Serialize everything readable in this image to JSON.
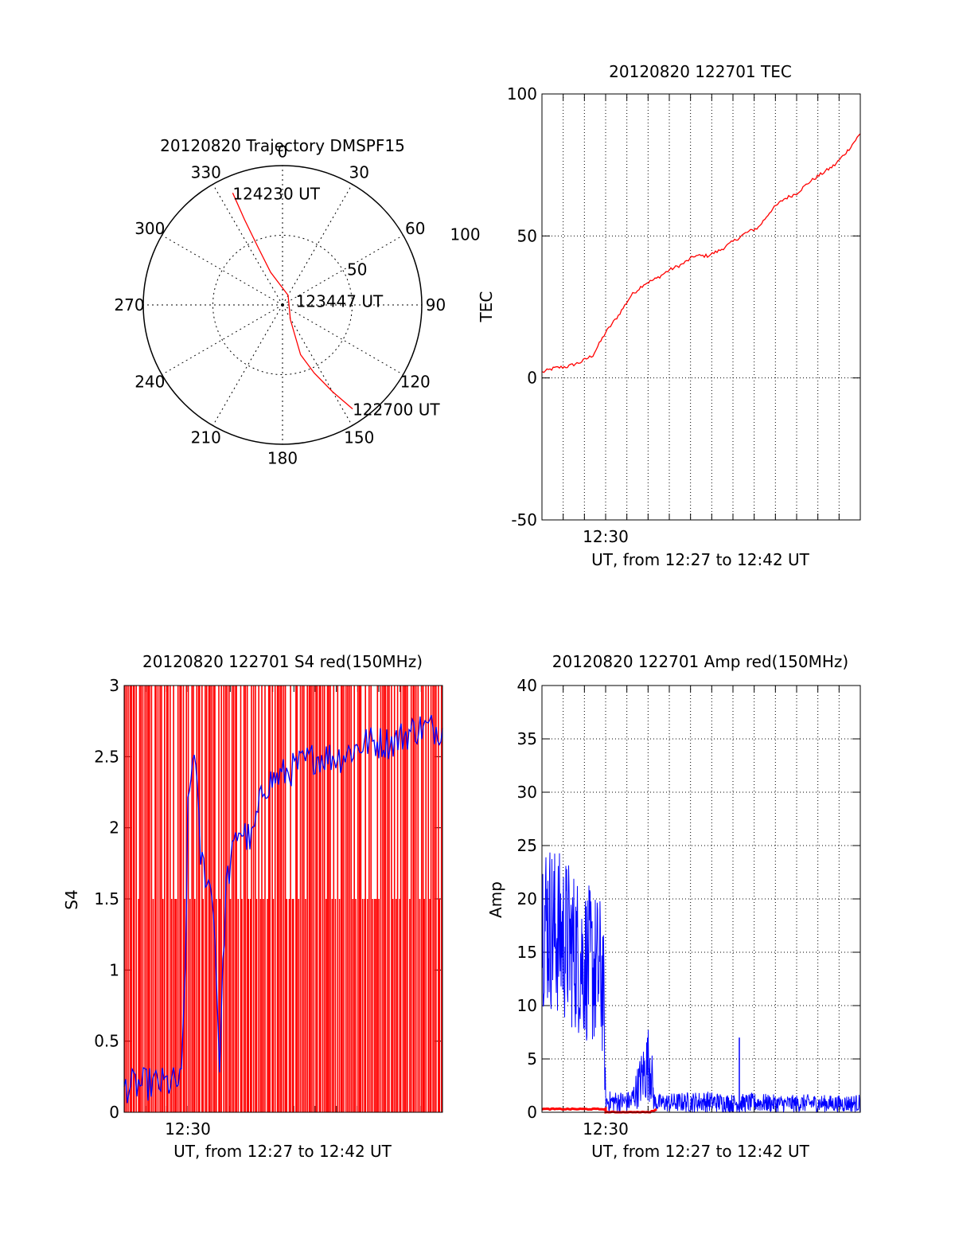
{
  "colors": {
    "red": "#ff0000",
    "blue": "#0000ff",
    "axis": "#000000",
    "grid": "#000000",
    "background": "#ffffff"
  },
  "chart_data": [
    {
      "id": "trajectory",
      "type": "polar",
      "title": "20120820 Trajectory DMSPF15",
      "theta_ticks": [
        "0",
        "30",
        "60",
        "90",
        "120",
        "150",
        "180",
        "210",
        "240",
        "270",
        "300",
        "330"
      ],
      "theta_tick_values": [
        0,
        30,
        60,
        90,
        120,
        150,
        180,
        210,
        240,
        270,
        300,
        330
      ],
      "radial_ticks": [
        "50",
        "100"
      ],
      "radial_tick_values": [
        50,
        100
      ],
      "rlim": [
        0,
        100
      ],
      "grid": true,
      "series": [
        {
          "color": "red",
          "points": [
            {
              "az": 146,
              "r": 90
            },
            {
              "az": 150,
              "r": 72
            },
            {
              "az": 155,
              "r": 54
            },
            {
              "az": 160,
              "r": 38
            },
            {
              "az": 152,
              "r": 12
            },
            {
              "az": 30,
              "r": 8
            },
            {
              "az": 340,
              "r": 25
            },
            {
              "az": 337,
              "r": 45
            },
            {
              "az": 336,
              "r": 67
            },
            {
              "az": 336,
              "r": 88
            }
          ]
        }
      ],
      "annotations": [
        {
          "text": "124230 UT",
          "az": 336,
          "r": 88
        },
        {
          "text": "123447 UT",
          "az": 72,
          "r": 10
        },
        {
          "text": "122700 UT",
          "az": 146,
          "r": 90
        }
      ]
    },
    {
      "id": "tec",
      "type": "line",
      "title": "20120820 122701 TEC",
      "xlabel": "UT, from 12:27 to 12:42 UT",
      "ylabel": "TEC",
      "xlim": [
        12.45,
        12.7
      ],
      "ylim": [
        -50,
        100
      ],
      "yticks": [
        -50,
        0,
        50,
        100
      ],
      "xticks": [
        {
          "value": 12.5,
          "label": "12:30"
        }
      ],
      "grid": true,
      "series": [
        {
          "color": "red",
          "x": [
            12.4503,
            12.46,
            12.47,
            12.48,
            12.49,
            12.5,
            12.51,
            12.52,
            12.53,
            12.54,
            12.55,
            12.56,
            12.57,
            12.58,
            12.59,
            12.6,
            12.61,
            12.62,
            12.63,
            12.64,
            12.65,
            12.66,
            12.67,
            12.68,
            12.69,
            12.7
          ],
          "y": [
            2,
            3.5,
            4,
            5.5,
            8,
            16,
            22,
            29,
            33,
            35,
            38,
            40,
            43,
            43,
            45,
            48,
            51,
            53,
            59,
            63,
            65,
            69,
            72,
            75,
            80,
            86
          ]
        }
      ]
    },
    {
      "id": "s4",
      "type": "line",
      "title": "20120820 122701 S4 red(150MHz)",
      "xlabel": "UT, from 12:27 to 12:42 UT",
      "ylabel": "S4",
      "xlim": [
        12.45,
        12.7
      ],
      "ylim": [
        0,
        3
      ],
      "yticks": [
        0,
        0.5,
        1,
        1.5,
        2,
        2.5,
        3
      ],
      "xticks": [
        {
          "value": 12.5,
          "label": "12:30"
        }
      ],
      "grid": false,
      "series": [
        {
          "color": "red",
          "style": "dense-spikes",
          "x_range": [
            12.45,
            12.7
          ],
          "y_range": [
            0,
            3
          ]
        },
        {
          "color": "blue",
          "x": [
            12.45,
            12.46,
            12.47,
            12.48,
            12.495,
            12.498,
            12.5,
            12.505,
            12.51,
            12.52,
            12.525,
            12.53,
            12.54,
            12.55,
            12.56,
            12.58,
            12.6,
            12.62,
            12.64,
            12.66,
            12.68,
            12.7
          ],
          "y": [
            0.18,
            0.19,
            0.2,
            0.2,
            0.21,
            1.0,
            2.1,
            2.6,
            1.8,
            1.5,
            0.35,
            1.6,
            2.0,
            1.9,
            2.3,
            2.4,
            2.5,
            2.5,
            2.6,
            2.6,
            2.7,
            2.7
          ]
        }
      ]
    },
    {
      "id": "amp",
      "type": "line",
      "title": "20120820 122701 Amp red(150MHz)",
      "xlabel": "UT, from 12:27 to 12:42 UT",
      "ylabel": "Amp",
      "xlim": [
        12.45,
        12.7
      ],
      "ylim": [
        0,
        40
      ],
      "yticks": [
        0,
        5,
        10,
        15,
        20,
        25,
        30,
        35,
        40
      ],
      "xticks": [
        {
          "value": 12.5,
          "label": "12:30"
        }
      ],
      "grid": true,
      "series": [
        {
          "color": "blue",
          "x": [
            12.45,
            12.46,
            12.47,
            12.48,
            12.49,
            12.498,
            12.5,
            12.52,
            12.535,
            12.538,
            12.54,
            12.55,
            12.58,
            12.6,
            12.62,
            12.64,
            12.66,
            12.68,
            12.7
          ],
          "y": [
            16,
            17,
            16,
            15,
            14,
            12,
            0.8,
            0.9,
            4,
            1,
            0.8,
            0.8,
            0.9,
            0.8,
            0.9,
            0.8,
            0.9,
            0.8,
            0.9
          ],
          "band_upper": [
            27,
            25,
            24,
            22,
            21,
            20,
            2,
            2,
            9,
            2,
            1.7,
            1.8,
            2,
            1.7,
            1.8,
            1.6,
            1.7,
            1.6,
            1.7
          ],
          "band_lower": [
            10,
            9,
            8,
            7,
            6,
            5,
            0,
            0,
            1,
            0,
            0,
            0,
            0,
            0,
            0,
            0,
            0,
            0,
            0
          ]
        },
        {
          "color": "red",
          "x": [
            12.45,
            12.5,
            12.5,
            12.535,
            12.54
          ],
          "y": [
            0.3,
            0.3,
            0,
            0,
            0.3
          ]
        }
      ],
      "annotations": [
        {
          "type": "spike",
          "x": 12.605,
          "y": 7
        }
      ]
    }
  ]
}
